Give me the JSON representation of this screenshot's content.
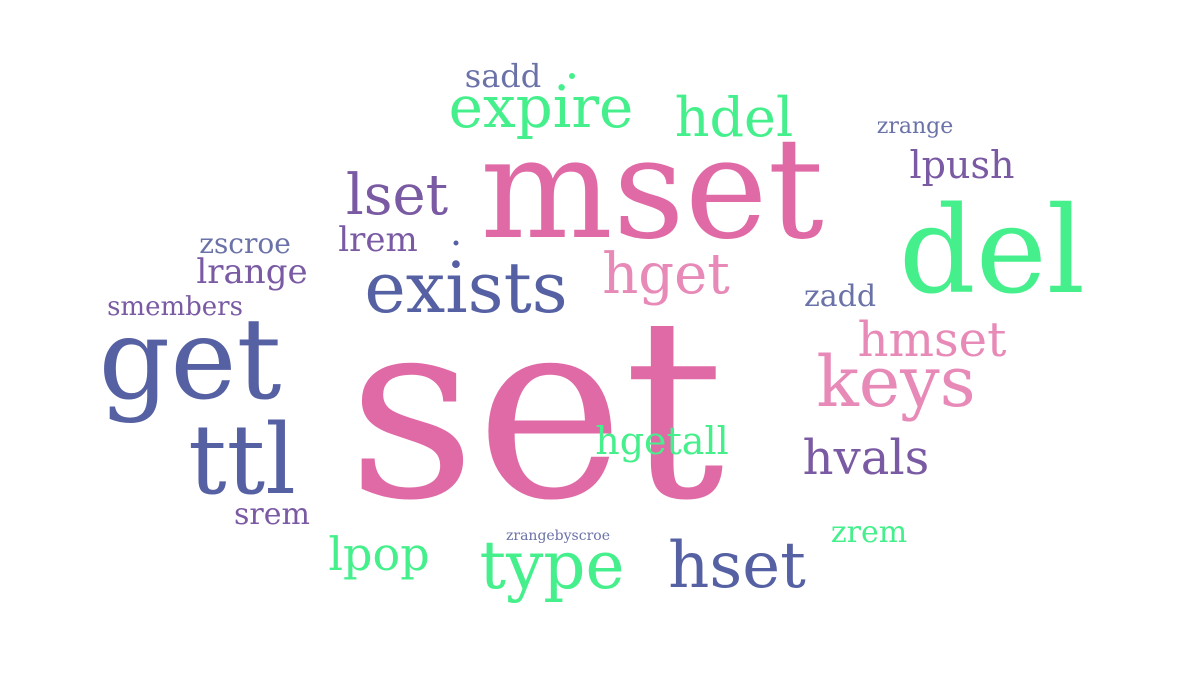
{
  "colors": {
    "pink": "#e06aa6",
    "light_pink": "#e88ab8",
    "green": "#45f08c",
    "blue": "#5661a3",
    "purple": "#7a5aa3",
    "slate": "#6a72a8"
  },
  "words": [
    {
      "id": "set",
      "text": "set",
      "color": "#e06aa6"
    },
    {
      "id": "mset",
      "text": "mset",
      "color": "#e06aa6"
    },
    {
      "id": "get",
      "text": "get",
      "color": "#5661a3"
    },
    {
      "id": "del",
      "text": "del",
      "color": "#45f08c"
    },
    {
      "id": "ttl",
      "text": "ttl",
      "color": "#5661a3"
    },
    {
      "id": "exists",
      "text": "exists",
      "color": "#5661a3"
    },
    {
      "id": "keys",
      "text": "keys",
      "color": "#e88ab8"
    },
    {
      "id": "type",
      "text": "type",
      "color": "#45f08c"
    },
    {
      "id": "hset",
      "text": "hset",
      "color": "#5661a3"
    },
    {
      "id": "expire",
      "text": "expire",
      "color": "#45f08c"
    },
    {
      "id": "lset",
      "text": "lset",
      "color": "#7a5aa3"
    },
    {
      "id": "hdel",
      "text": "hdel",
      "color": "#45f08c"
    },
    {
      "id": "hget",
      "text": "hget",
      "color": "#e88ab8"
    },
    {
      "id": "hmset",
      "text": "hmset",
      "color": "#e88ab8"
    },
    {
      "id": "hvals",
      "text": "hvals",
      "color": "#7a5aa3"
    },
    {
      "id": "lpop",
      "text": "lpop",
      "color": "#45f08c"
    },
    {
      "id": "hgetall",
      "text": "hgetall",
      "color": "#45f08c"
    },
    {
      "id": "lpush",
      "text": "lpush",
      "color": "#7a5aa3"
    },
    {
      "id": "lrem",
      "text": "lrem",
      "color": "#7a5aa3"
    },
    {
      "id": "lrange",
      "text": "lrange",
      "color": "#7a5aa3"
    },
    {
      "id": "sadd",
      "text": "sadd",
      "color": "#6a72a8"
    },
    {
      "id": "zadd",
      "text": "zadd",
      "color": "#6a72a8"
    },
    {
      "id": "zrem",
      "text": "zrem",
      "color": "#45f08c"
    },
    {
      "id": "srem",
      "text": "srem",
      "color": "#7a5aa3"
    },
    {
      "id": "zscroe",
      "text": "zscroe",
      "color": "#6a72a8"
    },
    {
      "id": "smembers",
      "text": "smembers",
      "color": "#7a5aa3"
    },
    {
      "id": "zrange",
      "text": "zrange",
      "color": "#6a72a8"
    },
    {
      "id": "zrangebyscroe",
      "text": "zrangebyscroe",
      "color": "#6a72a8"
    }
  ]
}
